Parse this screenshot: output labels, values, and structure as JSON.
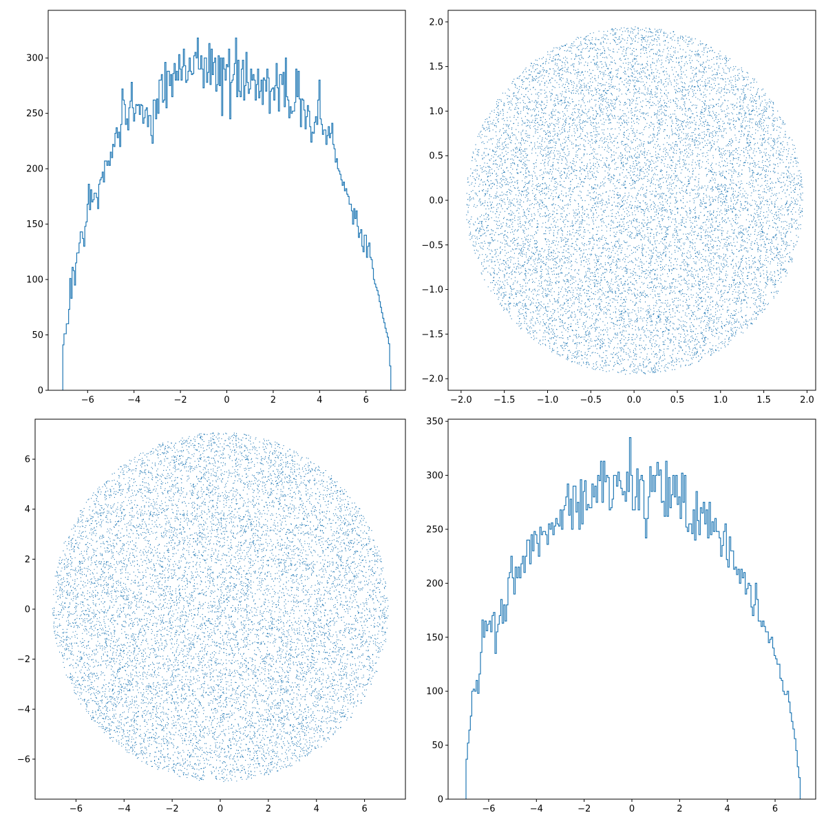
{
  "colors": {
    "series": "#1f77b4",
    "axes": "#000000",
    "background": "#ffffff"
  },
  "chart_data": [
    {
      "type": "step",
      "panel": "top-left",
      "title": "",
      "xlabel": "",
      "ylabel": "",
      "grid": false,
      "xlim": [
        -7.7,
        7.7
      ],
      "ylim": [
        0,
        343
      ],
      "xticks": [
        -6,
        -4,
        -2,
        0,
        2,
        4,
        6
      ],
      "xtick_labels": [
        "−6",
        "−4",
        "−2",
        "0",
        "2",
        "4",
        "6"
      ],
      "yticks": [
        0,
        50,
        100,
        150,
        200,
        250,
        300
      ],
      "ytick_labels": [
        "0",
        "50",
        "100",
        "150",
        "200",
        "250",
        "300"
      ],
      "bin_range": [
        -7.07,
        7.07
      ],
      "values": [
        41,
        51,
        51,
        60,
        60,
        73,
        101,
        83,
        111,
        108,
        95,
        115,
        124,
        124,
        133,
        143,
        143,
        137,
        130,
        148,
        152,
        168,
        186,
        163,
        181,
        170,
        172,
        178,
        178,
        174,
        164,
        186,
        190,
        192,
        197,
        188,
        207,
        207,
        203,
        207,
        203,
        215,
        210,
        222,
        220,
        232,
        237,
        228,
        233,
        220,
        240,
        272,
        262,
        258,
        240,
        245,
        235,
        255,
        261,
        278,
        255,
        243,
        250,
        258,
        257,
        258,
        249,
        258,
        257,
        241,
        246,
        253,
        255,
        238,
        248,
        248,
        230,
        223,
        262,
        262,
        245,
        263,
        250,
        280,
        280,
        285,
        260,
        262,
        296,
        255,
        288,
        288,
        275,
        285,
        265,
        286,
        295,
        280,
        288,
        280,
        303,
        290,
        280,
        292,
        308,
        293,
        278,
        280,
        288,
        300,
        288,
        285,
        286,
        302,
        305,
        300,
        318,
        290,
        290,
        302,
        290,
        273,
        300,
        300,
        278,
        287,
        313,
        276,
        308,
        285,
        296,
        300,
        270,
        276,
        302,
        275,
        300,
        248,
        300,
        290,
        280,
        294,
        292,
        308,
        245,
        278,
        280,
        285,
        295,
        318,
        265,
        298,
        270,
        265,
        290,
        298,
        262,
        275,
        305,
        278,
        268,
        272,
        290,
        280,
        285,
        280,
        262,
        276,
        290,
        264,
        270,
        280,
        258,
        282,
        280,
        270,
        290,
        282,
        250,
        270,
        272,
        273,
        262,
        275,
        295,
        273,
        252,
        285,
        285,
        276,
        287,
        256,
        300,
        265,
        262,
        246,
        256,
        250,
        252,
        252,
        260,
        290,
        265,
        288,
        263,
        238,
        263,
        262,
        253,
        236,
        247,
        257,
        252,
        238,
        224,
        233,
        232,
        242,
        247,
        240,
        262,
        280,
        245,
        240,
        231,
        235,
        235,
        222,
        230,
        238,
        228,
        232,
        241,
        222,
        218,
        206,
        209,
        200,
        198,
        195,
        190,
        185,
        188,
        180,
        182,
        177,
        175,
        168,
        168,
        162,
        150,
        164,
        155,
        162,
        148,
        138,
        142,
        145,
        130,
        125,
        140,
        140,
        120,
        130,
        133,
        120,
        118,
        110,
        100,
        96,
        93,
        90,
        86,
        80,
        75,
        70,
        65,
        61,
        56,
        52,
        48,
        42,
        22
      ]
    },
    {
      "type": "scatter",
      "panel": "top-right",
      "title": "",
      "xlabel": "",
      "ylabel": "",
      "grid": false,
      "xlim": [
        -2.15,
        2.1
      ],
      "ylim": [
        -2.13,
        2.13
      ],
      "xticks": [
        -2.0,
        -1.5,
        -1.0,
        -0.5,
        0.0,
        0.5,
        1.0,
        1.5,
        2.0
      ],
      "xtick_labels": [
        "−2.0",
        "−1.5",
        "−1.0",
        "−0.5",
        "0.0",
        "0.5",
        "1.0",
        "1.5",
        "2.0"
      ],
      "yticks": [
        -2.0,
        -1.5,
        -1.0,
        -0.5,
        0.0,
        0.5,
        1.0,
        1.5,
        2.0
      ],
      "ytick_labels": [
        "−2.0",
        "−1.5",
        "−1.0",
        "−0.5",
        "0.0",
        "0.5",
        "1.0",
        "1.5",
        "2.0"
      ],
      "distribution": "uniform-disk",
      "center": [
        0.0,
        0.0
      ],
      "radius": 1.95,
      "point_count": 12000
    },
    {
      "type": "scatter",
      "panel": "bottom-left",
      "title": "",
      "xlabel": "",
      "ylabel": "",
      "grid": false,
      "xlim": [
        -7.7,
        7.7
      ],
      "ylim": [
        -7.6,
        7.6
      ],
      "xticks": [
        -6,
        -4,
        -2,
        0,
        2,
        4,
        6
      ],
      "xtick_labels": [
        "−6",
        "−4",
        "−2",
        "0",
        "2",
        "4",
        "6"
      ],
      "yticks": [
        -6,
        -4,
        -2,
        0,
        2,
        4,
        6
      ],
      "ytick_labels": [
        "−6",
        "−4",
        "−2",
        "0",
        "2",
        "4",
        "6"
      ],
      "distribution": "uniform-disk",
      "center": [
        0.0,
        0.1
      ],
      "radius": 7.0,
      "point_count": 12000
    },
    {
      "type": "step",
      "panel": "bottom-right",
      "title": "",
      "xlabel": "",
      "ylabel": "",
      "grid": false,
      "xlim": [
        -7.7,
        7.7
      ],
      "ylim": [
        0,
        352
      ],
      "xticks": [
        -6,
        -4,
        -2,
        0,
        2,
        4,
        6
      ],
      "xtick_labels": [
        "−6",
        "−4",
        "−2",
        "0",
        "2",
        "4",
        "6"
      ],
      "yticks": [
        0,
        50,
        100,
        150,
        200,
        250,
        300,
        350
      ],
      "ytick_labels": [
        "0",
        "50",
        "100",
        "150",
        "200",
        "250",
        "300",
        "350"
      ],
      "bin_range": [
        -6.95,
        7.05
      ],
      "values": [
        37,
        52,
        64,
        77,
        100,
        102,
        100,
        110,
        98,
        116,
        136,
        166,
        150,
        165,
        156,
        162,
        165,
        155,
        170,
        173,
        135,
        155,
        162,
        170,
        185,
        163,
        180,
        165,
        180,
        205,
        210,
        225,
        205,
        190,
        215,
        205,
        215,
        205,
        218,
        225,
        210,
        225,
        240,
        240,
        218,
        245,
        230,
        248,
        245,
        237,
        225,
        252,
        245,
        248,
        248,
        245,
        236,
        255,
        250,
        256,
        245,
        253,
        260,
        255,
        253,
        268,
        250,
        268,
        272,
        280,
        292,
        263,
        278,
        250,
        290,
        290,
        266,
        275,
        250,
        296,
        255,
        285,
        295,
        268,
        273,
        270,
        270,
        292,
        280,
        290,
        275,
        300,
        295,
        313,
        275,
        313,
        294,
        300,
        298,
        268,
        270,
        278,
        300,
        300,
        290,
        303,
        295,
        288,
        282,
        285,
        276,
        303,
        285,
        335,
        300,
        268,
        268,
        280,
        306,
        268,
        296,
        300,
        295,
        260,
        242,
        260,
        280,
        308,
        285,
        300,
        285,
        300,
        312,
        300,
        305,
        275,
        276,
        262,
        313,
        262,
        298,
        270,
        282,
        300,
        280,
        300,
        273,
        280,
        260,
        302,
        275,
        300,
        252,
        248,
        255,
        255,
        246,
        268,
        240,
        285,
        258,
        245,
        270,
        265,
        275,
        255,
        268,
        242,
        275,
        245,
        257,
        248,
        260,
        248,
        248,
        242,
        225,
        235,
        248,
        255,
        222,
        215,
        243,
        230,
        230,
        213,
        215,
        208,
        213,
        200,
        213,
        205,
        210,
        190,
        195,
        200,
        198,
        178,
        170,
        180,
        200,
        185,
        165,
        165,
        160,
        165,
        160,
        155,
        155,
        145,
        148,
        150,
        140,
        133,
        130,
        125,
        125,
        112,
        110,
        100,
        97,
        97,
        100,
        90,
        80,
        72,
        65,
        56,
        45,
        30,
        20
      ]
    }
  ]
}
